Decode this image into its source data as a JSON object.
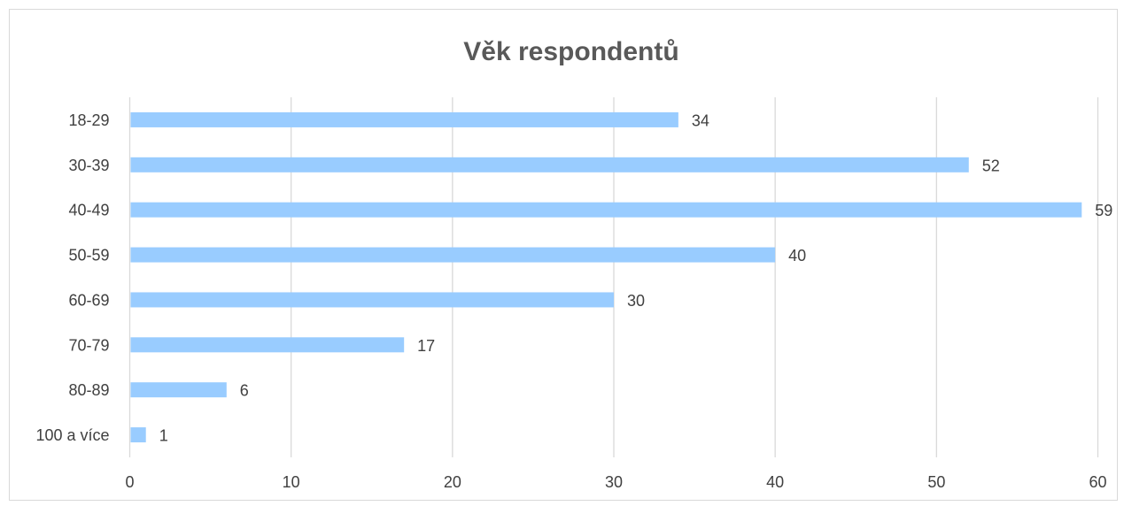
{
  "chart_data": {
    "type": "bar",
    "orientation": "horizontal",
    "title": "Věk respondentů",
    "xlabel": "",
    "ylabel": "",
    "categories": [
      "18-29",
      "30-39",
      "40-49",
      "50-59",
      "60-69",
      "70-79",
      "80-89",
      "100 a více"
    ],
    "values": [
      34,
      52,
      59,
      40,
      30,
      17,
      6,
      1
    ],
    "xlim": [
      0,
      60
    ],
    "xticks": [
      0,
      10,
      20,
      30,
      40,
      50,
      60
    ],
    "grid": "vertical",
    "legend": "none",
    "data_labels": true,
    "colors": {
      "bar": "#99ccff",
      "grid": "#d9d9d9",
      "text": "#404040",
      "title": "#595959"
    }
  }
}
